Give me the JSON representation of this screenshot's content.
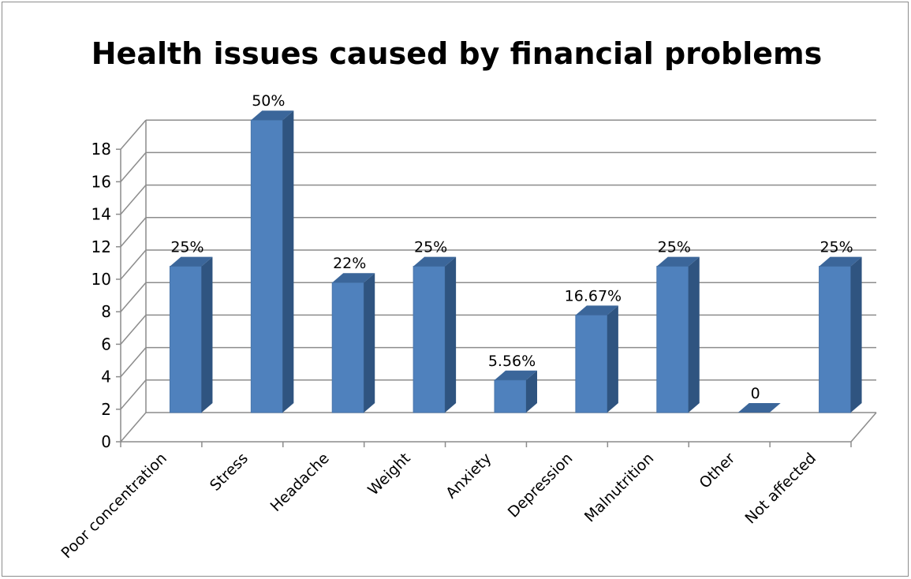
{
  "chart_data": {
    "type": "bar",
    "title": "Health issues caused by financial problems",
    "categories": [
      "Poor concentration",
      "Stress",
      "Headache",
      "Weight",
      "Anxiety",
      "Depression",
      "Malnutrition",
      "Other",
      "Not affected"
    ],
    "values": [
      9,
      18,
      8,
      9,
      2,
      6,
      9,
      0,
      9
    ],
    "data_labels": [
      "25%",
      "50%",
      "22%",
      "25%",
      "5.56%",
      "16.67%",
      "25%",
      "0",
      "25%"
    ],
    "ylim": [
      0,
      18
    ],
    "yticks": [
      "0",
      "2",
      "4",
      "6",
      "8",
      "10",
      "12",
      "14",
      "16",
      "18"
    ],
    "grid": true,
    "legend": "none",
    "bar_color": "#4f81bd",
    "bar_side_color": "#2f5480",
    "bar_top_color": "#3b669a"
  }
}
